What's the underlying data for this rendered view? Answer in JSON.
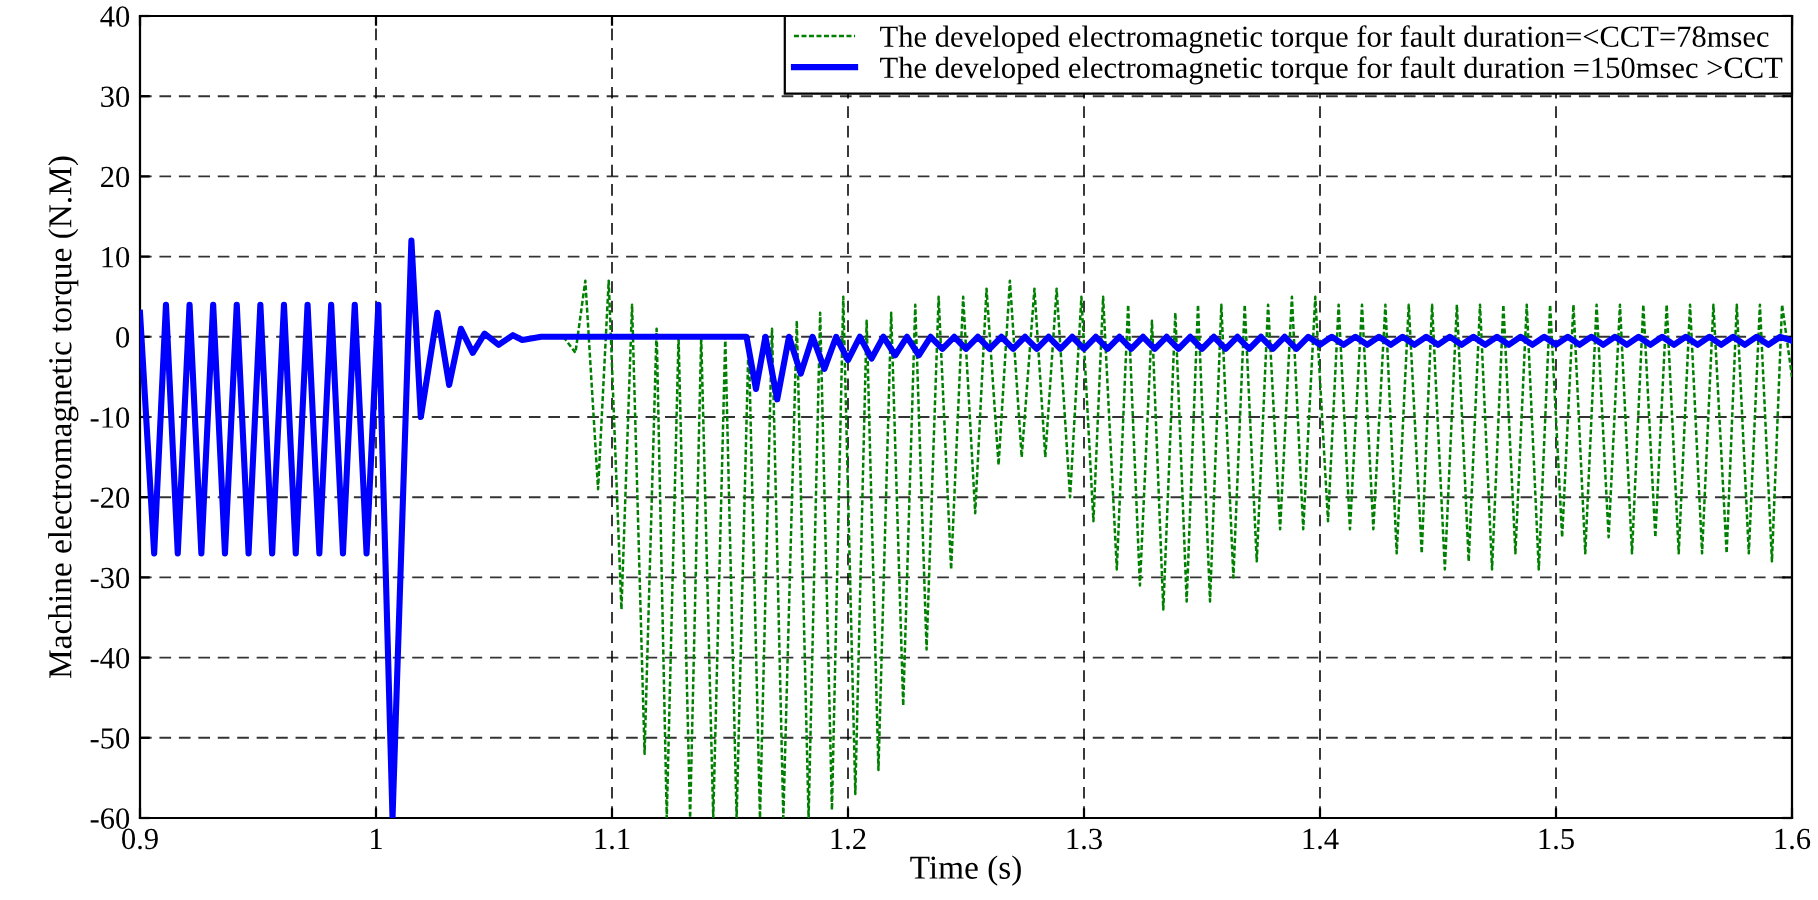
{
  "chart_data": {
    "type": "line",
    "xlabel": "Time (s)",
    "ylabel": "Machine electromagnetic torque (N.M)",
    "xlim": [
      0.9,
      1.6
    ],
    "xticks": [
      0.9,
      1,
      1.1,
      1.2,
      1.3,
      1.4,
      1.5,
      1.6
    ],
    "ylim": [
      -60,
      40
    ],
    "yticks": [
      -60,
      -50,
      -40,
      -30,
      -20,
      -10,
      0,
      10,
      20,
      30,
      40
    ],
    "grid": true,
    "legend": "top right",
    "series": [
      {
        "name": "The developed electromagnetic torque for fault duration=<CCT=78msec",
        "color": "#008000",
        "line_style": "dashed",
        "x": [
          1.0794,
          1.0845,
          1.0887,
          1.0941,
          1.0986,
          1.104,
          1.1085,
          1.1138,
          1.1189,
          1.1232,
          1.1282,
          1.1331,
          1.1378,
          1.1429,
          1.148,
          1.1528,
          1.1579,
          1.1627,
          1.1678,
          1.1726,
          1.1783,
          1.1833,
          1.1882,
          1.1932,
          1.198,
          1.2031,
          1.2079,
          1.2129,
          1.2183,
          1.2234,
          1.2285,
          1.2333,
          1.2384,
          1.2437,
          1.2488,
          1.2539,
          1.2587,
          1.2638,
          1.2686,
          1.2736,
          1.279,
          1.2836,
          1.2884,
          1.2941,
          1.2989,
          1.304,
          1.3081,
          1.3139,
          1.3187,
          1.3237,
          1.3288,
          1.3336,
          1.3387,
          1.3435,
          1.3483,
          1.3534,
          1.3582,
          1.3633,
          1.3681,
          1.3732,
          1.378,
          1.3831,
          1.3881,
          1.3929,
          1.398,
          1.4034,
          1.4079,
          1.4127,
          1.4178,
          1.4226,
          1.4277,
          1.4325,
          1.4376,
          1.4431,
          1.4475,
          1.4529,
          1.458,
          1.463,
          1.4678,
          1.4729,
          1.4777,
          1.4828,
          1.4876,
          1.4927,
          1.4975,
          1.5026,
          1.5074,
          1.5124,
          1.5172,
          1.5223,
          1.5271,
          1.5322,
          1.537,
          1.5421,
          1.5469,
          1.552,
          1.5568,
          1.5619,
          1.5667,
          1.5723,
          1.5766,
          1.5817,
          1.5864,
          1.5915,
          1.5958,
          1.6
        ],
        "values": [
          0,
          -2,
          7,
          -19,
          7,
          -34,
          4,
          -52,
          1,
          -60,
          0,
          -60,
          0,
          -60,
          0,
          -60,
          0,
          -60,
          1,
          -60,
          2,
          -60,
          3,
          -59,
          5,
          -57,
          2,
          -54,
          3,
          -46,
          4,
          -39,
          5,
          -29,
          5,
          -22,
          6,
          -16,
          7,
          -15,
          6,
          -15,
          6,
          -20,
          5,
          -23,
          5,
          -29,
          4,
          -31,
          2,
          -34,
          3,
          -33,
          4,
          -33,
          4,
          -30,
          4,
          -28,
          4,
          -24,
          5,
          -24,
          5,
          -23,
          4,
          -24,
          4,
          -24,
          4,
          -27,
          4,
          -27,
          4,
          -29,
          4,
          -28,
          4,
          -29,
          4,
          -27,
          4,
          -29,
          4,
          -25,
          4,
          -27,
          4,
          -25,
          4,
          -27,
          4,
          -25,
          4,
          -27,
          4,
          -27,
          4,
          -27,
          4,
          -27,
          4,
          -28,
          4,
          -5
        ]
      },
      {
        "name": "The developed electromagnetic torque for fault duration =150msec >CCT",
        "color": "#0000ff",
        "line_style": "solid",
        "x": [
          0.9,
          0.906,
          0.911,
          0.916,
          0.921,
          0.926,
          0.931,
          0.936,
          0.941,
          0.946,
          0.951,
          0.956,
          0.961,
          0.966,
          0.971,
          0.976,
          0.981,
          0.986,
          0.991,
          0.996,
          1.001,
          1.007,
          1.015,
          1.019,
          1.026,
          1.031,
          1.036,
          1.041,
          1.046,
          1.052,
          1.058,
          1.062,
          1.07,
          1.157,
          1.161,
          1.165,
          1.17,
          1.175,
          1.18,
          1.185,
          1.19,
          1.195,
          1.2,
          1.205,
          1.21,
          1.215,
          1.22,
          1.225,
          1.23,
          1.235,
          1.24,
          1.245,
          1.25,
          1.255,
          1.26,
          1.265,
          1.27,
          1.275,
          1.28,
          1.285,
          1.29,
          1.295,
          1.3,
          1.305,
          1.31,
          1.315,
          1.32,
          1.325,
          1.33,
          1.335,
          1.34,
          1.345,
          1.35,
          1.355,
          1.36,
          1.365,
          1.37,
          1.375,
          1.38,
          1.385,
          1.39,
          1.395,
          1.4,
          1.405,
          1.41,
          1.415,
          1.42,
          1.425,
          1.43,
          1.435,
          1.44,
          1.445,
          1.45,
          1.455,
          1.46,
          1.465,
          1.47,
          1.475,
          1.48,
          1.485,
          1.49,
          1.495,
          1.5,
          1.505,
          1.51,
          1.515,
          1.52,
          1.525,
          1.53,
          1.535,
          1.54,
          1.545,
          1.55,
          1.555,
          1.56,
          1.565,
          1.57,
          1.575,
          1.58,
          1.585,
          1.59,
          1.595,
          1.6
        ],
        "values": [
          3,
          -27,
          4,
          -27,
          4,
          -27,
          4,
          -27,
          4,
          -27,
          4,
          -27,
          4,
          -27,
          4,
          -27,
          4,
          -27,
          4,
          -27,
          4,
          -60,
          12,
          -10,
          3,
          -6,
          1,
          -2,
          0.4,
          -1,
          0.2,
          -0.4,
          0,
          0,
          -6.5,
          0,
          -7.8,
          0,
          -4.6,
          0,
          -4,
          0,
          -2.9,
          0,
          -2.7,
          0,
          -2.3,
          0,
          -2.3,
          0,
          -1.5,
          0,
          -1.5,
          0,
          -1.5,
          0,
          -1.5,
          0,
          -1.5,
          0,
          -1.5,
          0,
          -1.5,
          0,
          -1.5,
          0,
          -1.5,
          0,
          -1.5,
          0,
          -1.5,
          0,
          -1.5,
          0,
          -1.5,
          0,
          -1.5,
          0,
          -1.5,
          0,
          -1.5,
          0,
          -1,
          0,
          -1,
          0,
          -1,
          0,
          -1,
          0,
          -1,
          0,
          -1,
          0,
          -1,
          0,
          -1,
          0,
          -1,
          0,
          -1,
          0,
          -1,
          0,
          -1,
          0,
          -1,
          0,
          -1,
          0,
          -1,
          0,
          -1,
          0,
          -1,
          0,
          -1,
          0,
          -1,
          0,
          -1,
          0,
          -0.5
        ]
      }
    ]
  }
}
